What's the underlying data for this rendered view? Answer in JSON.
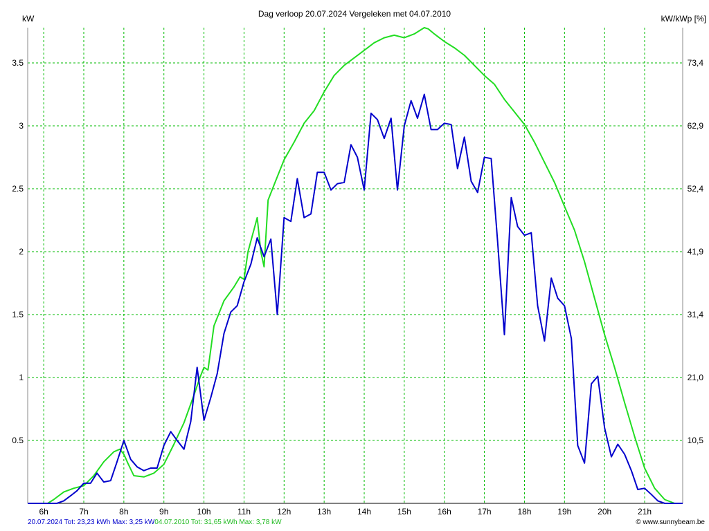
{
  "header": {
    "title": "Dag  verloop 20.07.2024   Vergeleken met 04.07.2010",
    "left_unit": "kW",
    "right_unit": "kW/kWp [%]"
  },
  "footer": {
    "series1_text": "20.07.2024 Tot: 23,23 kWh Max: 3,25 kW",
    "series2_text": "04.07.2010 Tot: 31,65 kWh Max: 3,78 kW",
    "brand": "© www.sunnybeam.be"
  },
  "colors": {
    "series1": "#0000cc",
    "series2": "#22dd22",
    "grid": "#00bb00"
  },
  "chart_data": {
    "type": "line",
    "title": "Dag  verloop 20.07.2024   Vergeleken met 04.07.2010",
    "ylabel": "kW",
    "ylabel_right": "kW/kWp [%]",
    "xlim": [
      5.6,
      21.95
    ],
    "ylim": [
      0,
      3.78
    ],
    "x_ticks": [
      6,
      7,
      8,
      9,
      10,
      11,
      12,
      13,
      14,
      15,
      16,
      17,
      18,
      19,
      20,
      21
    ],
    "x_tick_labels": [
      "6h",
      "7h",
      "8h",
      "9h",
      "10h",
      "11h",
      "12h",
      "13h",
      "14h",
      "15h",
      "16h",
      "17h",
      "18h",
      "19h",
      "20h",
      "21h"
    ],
    "y_ticks": [
      0.5,
      1,
      1.5,
      2,
      2.5,
      3,
      3.5
    ],
    "y_tick_labels": [
      "0.5",
      "1",
      "1.5",
      "2",
      "2.5",
      "3",
      "3.5"
    ],
    "y_right_tick_labels": [
      "10,5",
      "21,0",
      "31,4",
      "41,9",
      "52,4",
      "62,9",
      "73,4"
    ],
    "grid": true,
    "series": [
      {
        "name": "20.07.2024",
        "x": [
          5.6,
          6.33,
          6.5,
          6.67,
          6.83,
          7.0,
          7.17,
          7.33,
          7.5,
          7.67,
          7.83,
          8.0,
          8.17,
          8.33,
          8.5,
          8.67,
          8.83,
          9.0,
          9.17,
          9.33,
          9.5,
          9.67,
          9.83,
          10.0,
          10.17,
          10.33,
          10.5,
          10.67,
          10.83,
          11.0,
          11.17,
          11.33,
          11.5,
          11.67,
          11.83,
          12.0,
          12.17,
          12.33,
          12.5,
          12.67,
          12.83,
          13.0,
          13.17,
          13.33,
          13.5,
          13.67,
          13.83,
          14.0,
          14.17,
          14.33,
          14.5,
          14.67,
          14.83,
          15.0,
          15.17,
          15.33,
          15.5,
          15.67,
          15.83,
          16.0,
          16.17,
          16.33,
          16.5,
          16.67,
          16.83,
          17.0,
          17.17,
          17.33,
          17.5,
          17.67,
          17.83,
          18.0,
          18.17,
          18.33,
          18.5,
          18.67,
          18.83,
          19.0,
          19.17,
          19.33,
          19.5,
          19.67,
          19.83,
          20.0,
          20.17,
          20.33,
          20.5,
          20.67,
          20.83,
          21.0,
          21.17,
          21.33,
          21.5,
          21.67,
          21.95
        ],
        "y": [
          0,
          0,
          0.02,
          0.06,
          0.1,
          0.16,
          0.16,
          0.24,
          0.17,
          0.18,
          0.33,
          0.5,
          0.35,
          0.29,
          0.26,
          0.28,
          0.28,
          0.46,
          0.57,
          0.5,
          0.43,
          0.65,
          1.08,
          0.66,
          0.84,
          1.03,
          1.35,
          1.52,
          1.57,
          1.76,
          1.9,
          2.11,
          1.96,
          2.1,
          1.5,
          2.27,
          2.24,
          2.58,
          2.27,
          2.3,
          2.63,
          2.63,
          2.49,
          2.54,
          2.55,
          2.85,
          2.75,
          2.49,
          3.1,
          3.05,
          2.9,
          3.06,
          2.49,
          3.0,
          3.2,
          3.06,
          3.25,
          2.97,
          2.97,
          3.02,
          3.01,
          2.66,
          2.91,
          2.56,
          2.47,
          2.75,
          2.74,
          2.08,
          1.34,
          2.43,
          2.2,
          2.13,
          2.15,
          1.57,
          1.29,
          1.79,
          1.63,
          1.57,
          1.31,
          0.46,
          0.32,
          0.95,
          1.01,
          0.6,
          0.37,
          0.47,
          0.39,
          0.26,
          0.11,
          0.12,
          0.07,
          0.02,
          0,
          0,
          0
        ]
      },
      {
        "name": "04.07.2010",
        "x": [
          5.6,
          6.1,
          6.25,
          6.5,
          6.75,
          7.0,
          7.25,
          7.5,
          7.75,
          7.9,
          8.0,
          8.1,
          8.25,
          8.5,
          8.75,
          9.0,
          9.25,
          9.5,
          9.75,
          9.9,
          10.0,
          10.1,
          10.25,
          10.5,
          10.75,
          10.9,
          11.0,
          11.1,
          11.33,
          11.42,
          11.5,
          11.6,
          11.75,
          12.0,
          12.25,
          12.5,
          12.75,
          13.0,
          13.25,
          13.5,
          13.75,
          14.0,
          14.25,
          14.5,
          14.75,
          15.0,
          15.25,
          15.5,
          15.6,
          15.75,
          16.0,
          16.25,
          16.5,
          16.75,
          17.0,
          17.25,
          17.5,
          17.75,
          18.0,
          18.25,
          18.5,
          18.75,
          19.0,
          19.25,
          19.5,
          19.75,
          20.0,
          20.25,
          20.5,
          20.75,
          21.0,
          21.25,
          21.5,
          21.75,
          21.95
        ],
        "y": [
          0,
          0,
          0.03,
          0.09,
          0.12,
          0.14,
          0.22,
          0.33,
          0.41,
          0.43,
          0.39,
          0.32,
          0.22,
          0.21,
          0.24,
          0.31,
          0.47,
          0.64,
          0.86,
          1.0,
          1.08,
          1.06,
          1.41,
          1.61,
          1.72,
          1.8,
          1.78,
          2.0,
          2.27,
          2.0,
          1.88,
          2.41,
          2.53,
          2.73,
          2.87,
          3.02,
          3.12,
          3.27,
          3.4,
          3.48,
          3.54,
          3.6,
          3.66,
          3.7,
          3.72,
          3.7,
          3.73,
          3.78,
          3.77,
          3.73,
          3.67,
          3.62,
          3.56,
          3.48,
          3.4,
          3.33,
          3.21,
          3.11,
          3.01,
          2.87,
          2.71,
          2.55,
          2.36,
          2.17,
          1.92,
          1.63,
          1.34,
          1.08,
          0.8,
          0.53,
          0.28,
          0.12,
          0.03,
          0,
          0
        ]
      }
    ]
  }
}
